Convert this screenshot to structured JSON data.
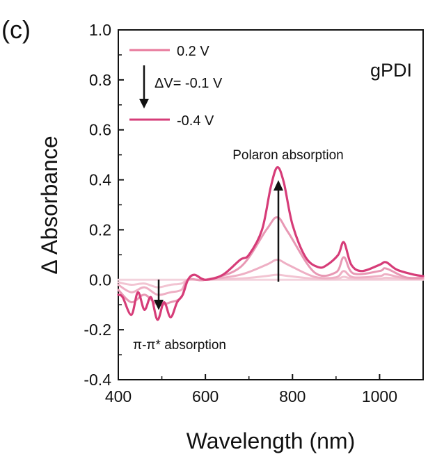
{
  "panel_label": "(c)",
  "chart_data": {
    "type": "line",
    "title": "gPDI",
    "xlabel": "Wavelength (nm)",
    "ylabel": "Δ Absorbance",
    "xlim": [
      400,
      1100
    ],
    "ylim": [
      -0.4,
      1.0
    ],
    "xticks": [
      400,
      600,
      800,
      1000
    ],
    "xtick_labels": [
      "400",
      "600",
      "800",
      "1000"
    ],
    "yticks": [
      -0.4,
      -0.2,
      0.0,
      0.2,
      0.4,
      0.6,
      0.8,
      1.0
    ],
    "ytick_labels": [
      "-0.4",
      "-0.2",
      "0.0",
      "0.2",
      "0.4",
      "0.6",
      "0.8",
      "1.0"
    ],
    "grid": false,
    "legend_position": "top-left",
    "legend": {
      "first": "0.2 V",
      "step": "ΔV= -0.1 V",
      "last": "-0.4 V"
    },
    "annotations": {
      "polaron": "Polaron absorption",
      "pipi": "π-π* absorption"
    },
    "series": [
      {
        "name": "0.2 V",
        "color": "#f3d3dd",
        "x": [
          400,
          600,
          1100
        ],
        "y": [
          0.0,
          0.0,
          0.0
        ]
      },
      {
        "color": "#f2c4d2",
        "x": [
          400,
          430,
          460,
          490,
          520,
          545,
          560,
          600,
          680,
          740,
          765,
          790,
          850,
          900,
          918,
          940,
          1000,
          1015,
          1060,
          1100
        ],
        "y": [
          -0.01,
          -0.02,
          -0.015,
          -0.03,
          -0.02,
          -0.015,
          0.0,
          0.0,
          0.005,
          0.015,
          0.02,
          0.015,
          0.004,
          0.003,
          0.012,
          0.004,
          0.004,
          0.008,
          0.003,
          0.002
        ]
      },
      {
        "color": "#eeafc4",
        "x": [
          400,
          430,
          460,
          490,
          520,
          545,
          560,
          600,
          680,
          740,
          765,
          790,
          850,
          900,
          918,
          940,
          1000,
          1015,
          1060,
          1100
        ],
        "y": [
          -0.02,
          -0.05,
          -0.03,
          -0.06,
          -0.05,
          -0.04,
          0.0,
          0.0,
          0.02,
          0.06,
          0.08,
          0.06,
          0.012,
          0.01,
          0.035,
          0.01,
          0.015,
          0.022,
          0.005,
          0.004
        ]
      },
      {
        "color": "#e898b4",
        "x": [
          400,
          430,
          460,
          490,
          520,
          545,
          560,
          600,
          680,
          740,
          765,
          790,
          850,
          900,
          918,
          940,
          1000,
          1015,
          1060,
          1100
        ],
        "y": [
          -0.04,
          -0.09,
          -0.06,
          -0.1,
          -0.09,
          -0.07,
          0.0,
          0.0,
          0.05,
          0.2,
          0.25,
          0.19,
          0.03,
          0.03,
          0.09,
          0.025,
          0.035,
          0.045,
          0.01,
          0.008
        ]
      },
      {
        "name": "-0.4 V",
        "color": "#d63c78",
        "x": [
          400,
          410,
          430,
          445,
          460,
          475,
          490,
          505,
          520,
          535,
          548,
          560,
          575,
          600,
          640,
          680,
          700,
          730,
          750,
          765,
          780,
          800,
          830,
          860,
          880,
          905,
          918,
          935,
          960,
          1000,
          1015,
          1040,
          1080,
          1100
        ],
        "y": [
          -0.06,
          -0.07,
          -0.14,
          -0.05,
          -0.12,
          -0.07,
          -0.16,
          -0.09,
          -0.15,
          -0.09,
          -0.06,
          0.0,
          0.02,
          0.0,
          0.02,
          0.08,
          0.1,
          0.2,
          0.37,
          0.45,
          0.39,
          0.22,
          0.09,
          0.05,
          0.06,
          0.1,
          0.15,
          0.06,
          0.035,
          0.06,
          0.07,
          0.04,
          0.02,
          0.015
        ]
      }
    ]
  }
}
